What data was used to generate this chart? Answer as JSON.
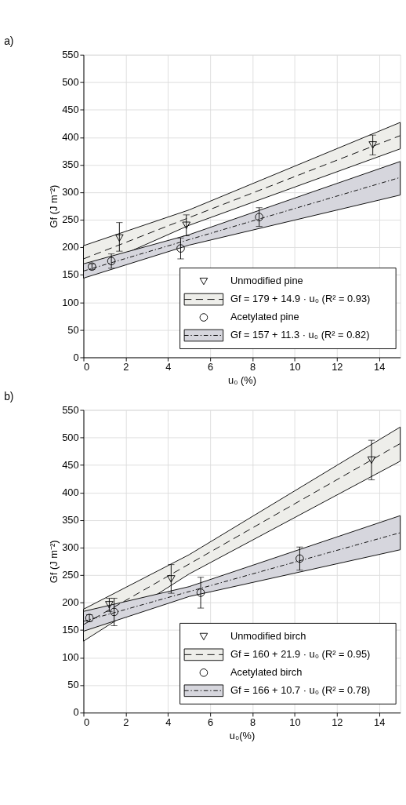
{
  "chart_data": [
    {
      "type": "scatter",
      "title": "a)",
      "xlabel": "u₀ (%)",
      "ylabel": "Gf (J m⁻²)",
      "xlim": [
        0,
        15
      ],
      "xticks": [
        0,
        2,
        4,
        6,
        8,
        10,
        12,
        14
      ],
      "ylim": [
        0,
        550
      ],
      "yticks": [
        0,
        50,
        100,
        150,
        200,
        250,
        300,
        350,
        400,
        450,
        500,
        550
      ],
      "grid": true,
      "legend": "bottom right",
      "series": [
        {
          "type": "scatter",
          "name": "Unmodified pine",
          "marker": "triangle",
          "color": "#000000",
          "x": [
            1.7,
            4.87,
            13.7
          ],
          "values": [
            217,
            240,
            386
          ],
          "errors": [
            [
              193,
              245
            ],
            19,
            18
          ]
        },
        {
          "type": "line",
          "name": "Gf = 179 + 14.9 · u₀   (R² = 0.93)",
          "line_style": "dashed",
          "color": "#000000",
          "x": [
            0,
            5,
            15
          ],
          "values": [
            179,
            254,
            403
          ],
          "lower": [
            155,
            240,
            379
          ],
          "upper": [
            203,
            268,
            427
          ]
        },
        {
          "type": "scatter",
          "name": "Acetylated pine",
          "marker": "circle",
          "color": "#000000",
          "x": [
            0.4,
            1.32,
            4.6,
            8.32
          ],
          "values": [
            165,
            175,
            198,
            255
          ],
          "errors": [
            5,
            13,
            19,
            17
          ]
        },
        {
          "type": "line",
          "name": "Gf = 157 + 11.3 · u₀   (R² = 0.82)",
          "line_style": "dotted",
          "color": "#000000",
          "x": [
            0,
            5,
            15
          ],
          "values": [
            157,
            214,
            327
          ],
          "lower": [
            144,
            204,
            295
          ],
          "upper": [
            170,
            223,
            356
          ]
        }
      ]
    },
    {
      "type": "scatter",
      "title": "b)",
      "xlabel": "u₀(%)",
      "ylabel": "Gf (J m⁻²)",
      "xlim": [
        0,
        15
      ],
      "xticks": [
        0,
        2,
        4,
        6,
        8,
        10,
        12,
        14
      ],
      "ylim": [
        0,
        550
      ],
      "yticks": [
        0,
        50,
        100,
        150,
        200,
        250,
        300,
        350,
        400,
        450,
        500,
        550
      ],
      "grid": true,
      "legend": "bottom right",
      "series": [
        {
          "type": "scatter",
          "name": "Unmodified birch",
          "marker": "triangle",
          "color": "#000000",
          "x": [
            1.22,
            4.15,
            13.64
          ],
          "values": [
            196,
            243,
            459
          ],
          "errors": [
            12,
            26,
            36
          ]
        },
        {
          "type": "line",
          "name": "Gf = 160 + 21.9 · u₀   (R² = 0.95)",
          "line_style": "dashed",
          "color": "#000000",
          "x": [
            0,
            5,
            15
          ],
          "values": [
            160,
            270,
            489
          ],
          "lower": [
            130,
            252,
            457
          ],
          "upper": [
            188,
            287,
            519
          ]
        },
        {
          "type": "scatter",
          "name": "Acetylated birch",
          "marker": "circle",
          "color": "#000000",
          "x": [
            0.28,
            1.45,
            5.55,
            10.24
          ],
          "values": [
            172,
            183,
            218,
            280
          ],
          "errors": [
            6,
            25,
            28,
            21
          ]
        },
        {
          "type": "line",
          "name": "Gf = 166 + 10.7 · u₀   (R² = 0.78)",
          "line_style": "dotted",
          "color": "#000000",
          "x": [
            0,
            5,
            15
          ],
          "values": [
            166,
            220,
            327
          ],
          "lower": [
            148,
            211,
            296
          ],
          "upper": [
            184,
            229,
            358
          ]
        }
      ]
    }
  ]
}
